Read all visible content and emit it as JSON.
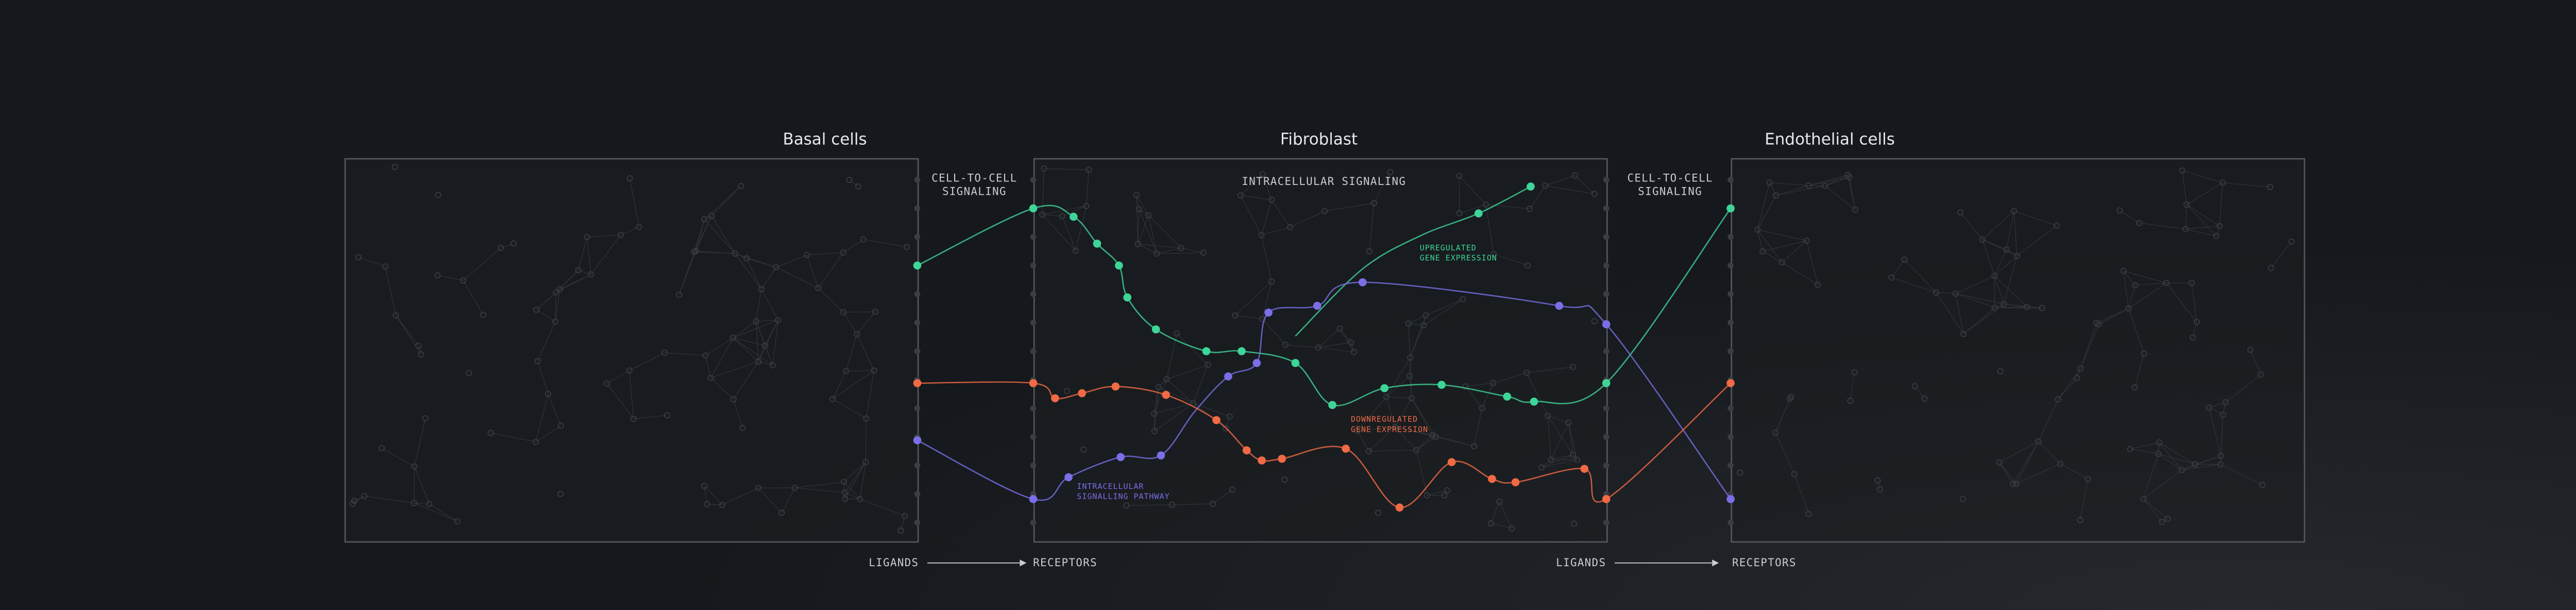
{
  "panels": [
    {
      "title": "Basal cells"
    },
    {
      "title": "Fibroblast"
    },
    {
      "title": "Endothelial cells"
    }
  ],
  "labels": {
    "cell_to_cell_left": [
      "CELL-TO-CELL",
      "SIGNALING"
    ],
    "intracellular": "INTRACELLULAR SIGNALING",
    "cell_to_cell_right": [
      "CELL-TO-CELL",
      "SIGNALING"
    ],
    "upregulated": [
      "UPREGULATED",
      "GENE EXPRESSION"
    ],
    "downregulated": [
      "DOWNREGULATED",
      "GENE EXPRESSION"
    ],
    "pathway": [
      "INTRACELLULAR",
      "SIGNALLING PATHWAY"
    ]
  },
  "flows": [
    {
      "from": "LIGANDS",
      "to": "RECEPTORS"
    },
    {
      "from": "LIGANDS",
      "to": "RECEPTORS"
    }
  ]
}
